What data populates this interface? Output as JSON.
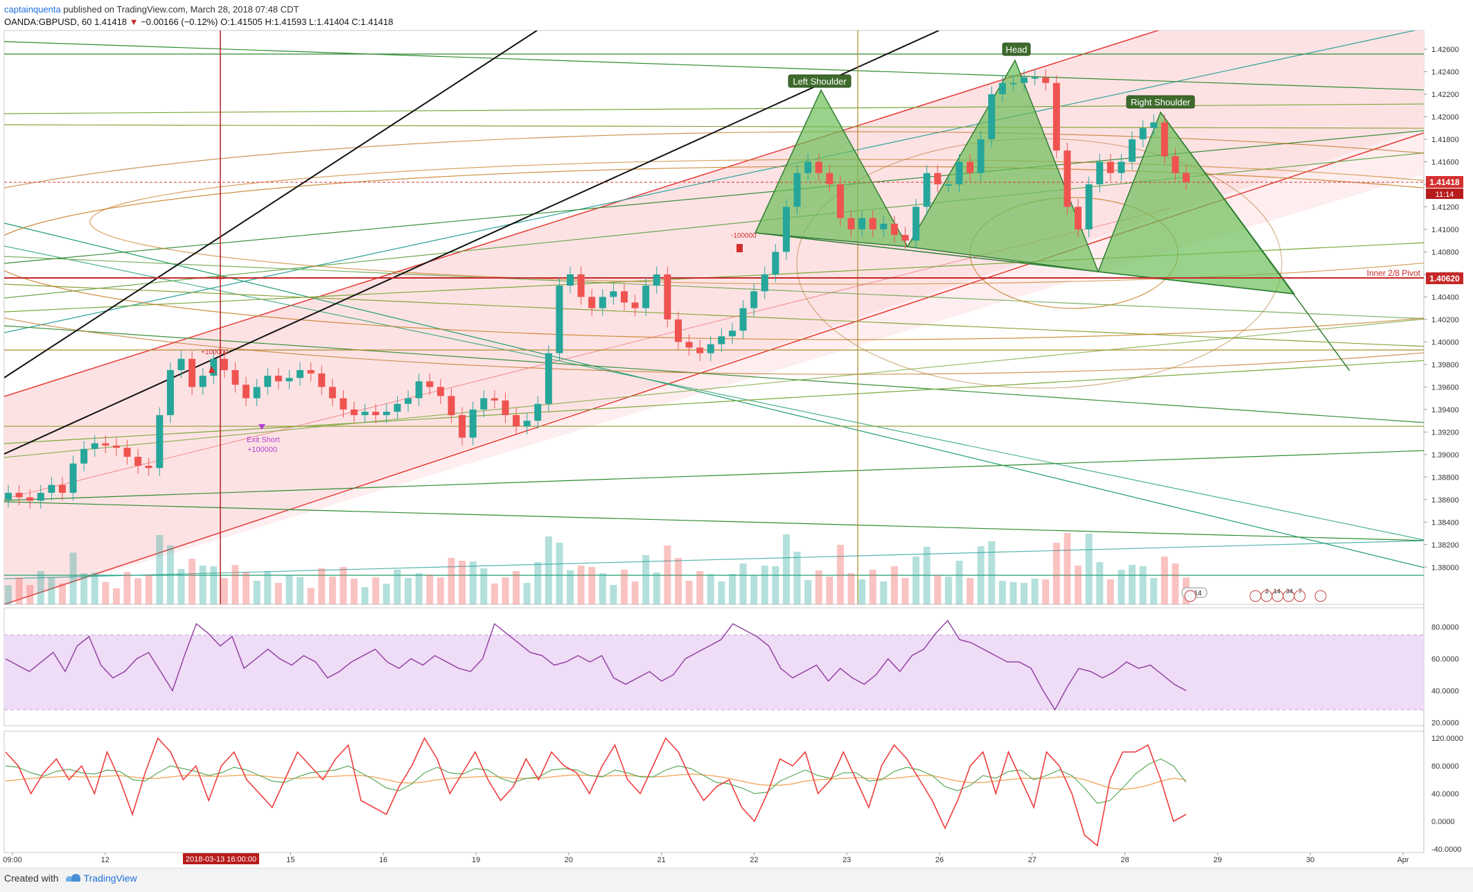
{
  "header": {
    "publisher": "captainquenta",
    "published_text": "published on TradingView.com, March 28, 2018 07:48 CDT",
    "symbol": "OANDA:GBPUSD, 60",
    "last": "1.41418",
    "down_arrow": "▼",
    "change": "−0.00166 (−0.12%)",
    "ohlc": "O:1.41505 H:1.41593 L:1.41404 C:1.41418"
  },
  "footer": {
    "created_with": "Created with",
    "brand": "TradingView",
    "logo_icon": "tradingview-logo-icon"
  },
  "colors": {
    "up": "#26a69a",
    "down": "#ef5350",
    "channel_fill": "#fde2e4",
    "pattern_fill": "#8cc97a",
    "pivot": "#c62828",
    "rsi": "#8e3a9e",
    "rsi_band": "#efdcf7",
    "stoch": "#f03c3c",
    "signal_green": "#5aa85a",
    "signal_orange": "#f0a050"
  },
  "chart_data": [
    {
      "type": "candlestick",
      "panel": "price",
      "instrument": "GBPUSD",
      "x_tick_labels": [
        "09:00",
        "12",
        "13",
        "15",
        "16",
        "19",
        "20",
        "21",
        "22",
        "23",
        "26",
        "27",
        "28",
        "29",
        "30",
        "Apr"
      ],
      "highlighted_x_label": "2018-03-13 16:00:00",
      "ylim": [
        1.3778,
        1.4268
      ],
      "y_ticks": [
        "1.42600",
        "1.42400",
        "1.42200",
        "1.42000",
        "1.41800",
        "1.41600",
        "1.41400",
        "1.41200",
        "1.41000",
        "1.40800",
        "1.40600",
        "1.40400",
        "1.40200",
        "1.40000",
        "1.39800",
        "1.39600",
        "1.39400",
        "1.39200",
        "1.39000",
        "1.38800",
        "1.38600",
        "1.38400",
        "1.38200",
        "1.38000"
      ],
      "price_label": "1.41418",
      "countdown_label": "11:14",
      "pivot_level": 1.4062,
      "pivot_label": "1.40620",
      "pivot_text": "Inner 2/8 Pivot",
      "pattern_labels": [
        "Left Shoulder",
        "Head",
        "Right Shoulder"
      ],
      "trade_annotations": [
        "+100000",
        "Exit Short",
        "+100000",
        "-100000"
      ],
      "volume_badge": "1114",
      "event_badges": [
        "2",
        "14",
        "34",
        "7"
      ],
      "series_close": [
        1.3866,
        1.3862,
        1.3859,
        1.3866,
        1.3873,
        1.3866,
        1.3892,
        1.3905,
        1.391,
        1.3908,
        1.3906,
        1.3898,
        1.389,
        1.3888,
        1.3935,
        1.3975,
        1.3985,
        1.396,
        1.397,
        1.3985,
        1.3975,
        1.3962,
        1.395,
        1.396,
        1.397,
        1.3965,
        1.3968,
        1.3975,
        1.3972,
        1.396,
        1.395,
        1.394,
        1.3935,
        1.3938,
        1.3935,
        1.3938,
        1.3945,
        1.395,
        1.3965,
        1.396,
        1.3952,
        1.3935,
        1.3915,
        1.394,
        1.395,
        1.3948,
        1.3935,
        1.3925,
        1.393,
        1.3945,
        1.399,
        1.405,
        1.406,
        1.404,
        1.403,
        1.404,
        1.4045,
        1.4035,
        1.403,
        1.405,
        1.406,
        1.402,
        1.4,
        1.3995,
        1.399,
        1.3998,
        1.4005,
        1.401,
        1.403,
        1.4045,
        1.406,
        1.408,
        1.412,
        1.415,
        1.416,
        1.415,
        1.414,
        1.411,
        1.41,
        1.411,
        1.41,
        1.4105,
        1.4095,
        1.409,
        1.412,
        1.415,
        1.414,
        1.414,
        1.416,
        1.415,
        1.418,
        1.422,
        1.423,
        1.423,
        1.4235,
        1.4235,
        1.423,
        1.417,
        1.412,
        1.41,
        1.414,
        1.416,
        1.415,
        1.416,
        1.418,
        1.419,
        1.4195,
        1.4165,
        1.415,
        1.4142
      ]
    },
    {
      "type": "line",
      "panel": "rsi",
      "ylim": [
        18,
        92
      ],
      "y_ticks": [
        "80.0000",
        "60.0000",
        "40.0000",
        "20.0000"
      ],
      "band": [
        30,
        70
      ],
      "values": [
        60,
        56,
        52,
        58,
        64,
        52,
        68,
        74,
        56,
        48,
        52,
        60,
        64,
        52,
        40,
        62,
        82,
        76,
        68,
        74,
        54,
        60,
        66,
        60,
        56,
        62,
        58,
        48,
        52,
        58,
        62,
        66,
        58,
        54,
        60,
        56,
        62,
        58,
        54,
        52,
        60,
        82,
        76,
        70,
        64,
        62,
        56,
        58,
        62,
        58,
        62,
        48,
        44,
        48,
        52,
        46,
        50,
        60,
        64,
        68,
        72,
        82,
        78,
        74,
        68,
        54,
        48,
        52,
        56,
        46,
        54,
        48,
        44,
        50,
        60,
        52,
        62,
        66,
        76,
        84,
        72,
        70,
        66,
        62,
        58,
        58,
        54,
        40,
        28,
        42,
        54,
        52,
        48,
        52,
        58,
        54,
        56,
        50,
        44,
        40
      ]
    },
    {
      "type": "line",
      "panel": "stochastic",
      "ylim": [
        -45,
        130
      ],
      "y_ticks": [
        "120.0000",
        "80.0000",
        "40.0000",
        "0.0000",
        "-40.0000"
      ],
      "series": [
        {
          "values": [
            100,
            80,
            40,
            70,
            90,
            60,
            80,
            40,
            100,
            60,
            10,
            70,
            120,
            100,
            60,
            80,
            30,
            80,
            100,
            60,
            40,
            20,
            60,
            100,
            80,
            60,
            90,
            110,
            30,
            20,
            10,
            50,
            80,
            120,
            90,
            40,
            70,
            100,
            60,
            30,
            50,
            90,
            60,
            100,
            80,
            70,
            40,
            80,
            110,
            60,
            40,
            80,
            120,
            100,
            60,
            30,
            50,
            60,
            20,
            0,
            40,
            90,
            80,
            100,
            40,
            60,
            100,
            60,
            20,
            80,
            110,
            90,
            60,
            30,
            -10,
            30,
            80,
            100,
            40,
            100,
            60,
            20,
            100,
            80,
            40,
            -20,
            -35,
            60,
            100,
            100,
            110,
            60,
            0,
            10
          ]
        },
        {
          "values": [
            80,
            78,
            70,
            65,
            72,
            75,
            70,
            68,
            74,
            72,
            60,
            58,
            70,
            80,
            76,
            72,
            66,
            70,
            78,
            74,
            66,
            58,
            56,
            64,
            70,
            72,
            74,
            80,
            70,
            60,
            48,
            44,
            54,
            70,
            78,
            70,
            68,
            76,
            74,
            62,
            56,
            62,
            64,
            74,
            76,
            74,
            66,
            64,
            74,
            70,
            64,
            64,
            74,
            80,
            76,
            66,
            56,
            54,
            48,
            40,
            42,
            58,
            66,
            74,
            66,
            62,
            70,
            70,
            58,
            60,
            72,
            78,
            74,
            66,
            50,
            44,
            52,
            66,
            62,
            72,
            74,
            60,
            66,
            74,
            66,
            48,
            26,
            30,
            48,
            68,
            82,
            90,
            80,
            56
          ]
        },
        {
          "values": [
            58,
            60,
            62,
            63,
            64,
            65,
            64,
            64,
            65,
            66,
            64,
            62,
            62,
            64,
            66,
            66,
            65,
            65,
            66,
            67,
            66,
            64,
            62,
            62,
            63,
            64,
            65,
            66,
            66,
            64,
            60,
            56,
            55,
            57,
            60,
            62,
            63,
            64,
            65,
            64,
            62,
            62,
            62,
            64,
            66,
            67,
            66,
            65,
            66,
            66,
            65,
            64,
            65,
            67,
            68,
            67,
            65,
            62,
            58,
            54,
            52,
            52,
            54,
            58,
            60,
            61,
            62,
            63,
            62,
            61,
            62,
            64,
            66,
            66,
            62,
            58,
            56,
            56,
            58,
            60,
            62,
            62,
            62,
            64,
            64,
            60,
            54,
            48,
            46,
            48,
            52,
            58,
            62,
            60
          ]
        }
      ]
    }
  ]
}
